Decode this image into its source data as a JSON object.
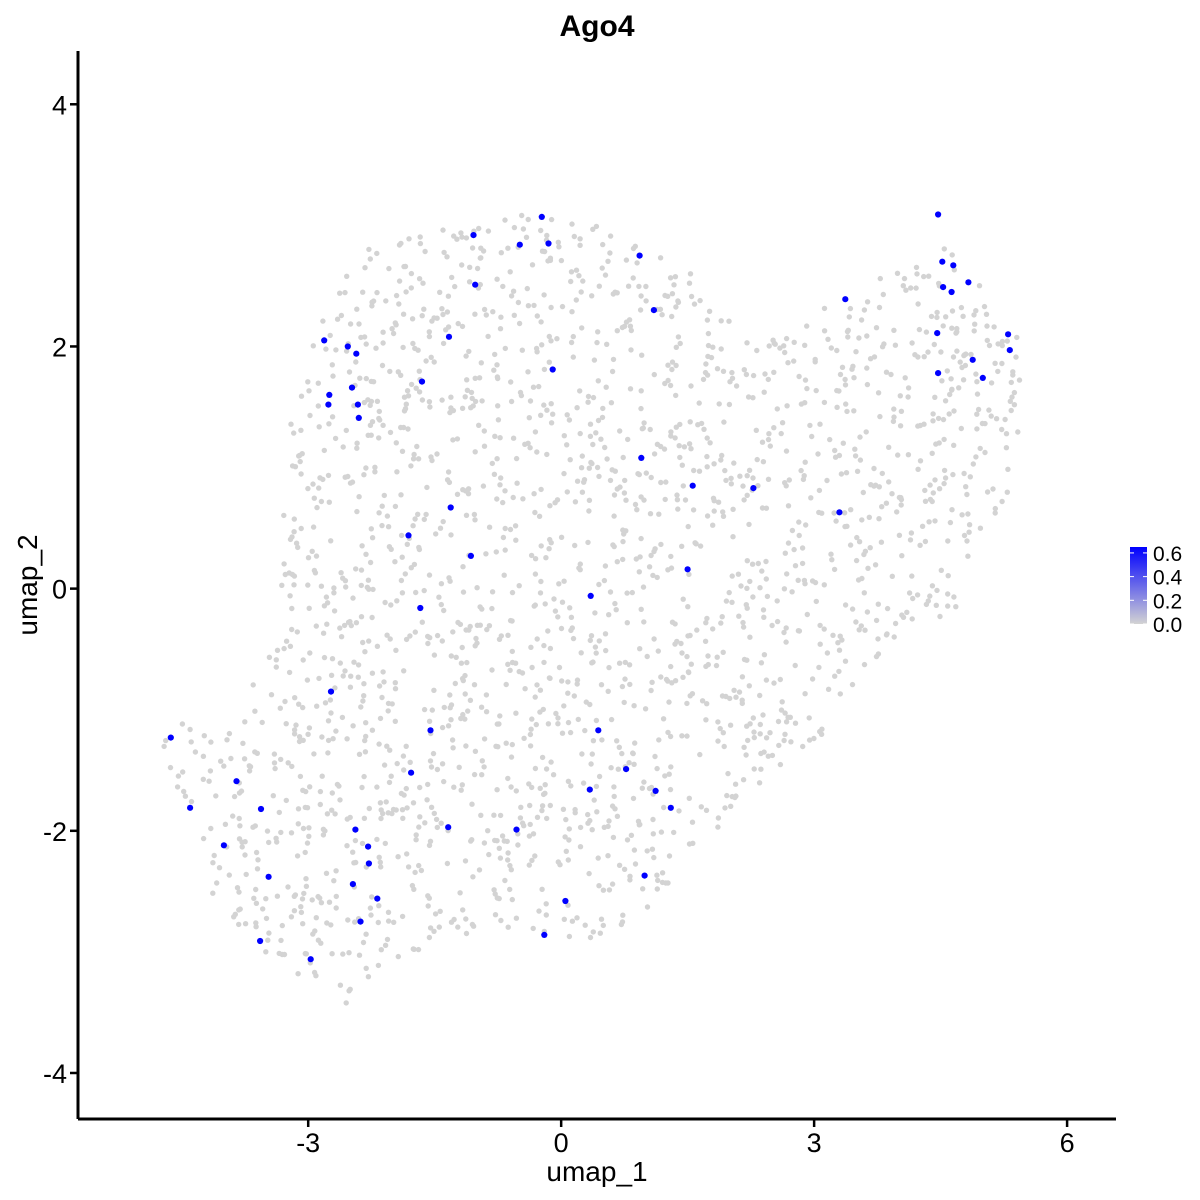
{
  "chart_data": {
    "type": "scatter",
    "title": "Ago4",
    "xlabel": "umap_1",
    "ylabel": "umap_2",
    "xlim": [
      -5.73,
      6.58
    ],
    "ylim": [
      -4.38,
      4.44
    ],
    "x_ticks": [
      -3,
      0,
      3,
      6
    ],
    "y_ticks": [
      -4,
      -2,
      0,
      2,
      4
    ],
    "x_tick_labels": [
      "-3",
      "0",
      "3",
      "6"
    ],
    "y_tick_labels": [
      "-4",
      "-2",
      "0",
      "2",
      "4"
    ],
    "grid": false,
    "legend": {
      "placement": "right",
      "type": "colorbar",
      "range": [
        0.0,
        0.65
      ],
      "ticks": [
        0.0,
        0.2,
        0.4,
        0.6
      ],
      "tick_labels": [
        "0.0",
        "0.2",
        "0.4",
        "0.6"
      ],
      "low_color": "#d3d3d3",
      "high_color": "#0000ff"
    },
    "colors": {
      "unexpressed": "#d3d3d3",
      "expressed": "#0000ff"
    },
    "background_region": {
      "description_points_color": "#d3d3d3",
      "outline": [
        [
          -4.8,
          -1.3
        ],
        [
          -4.5,
          -1.1
        ],
        [
          -3.9,
          -1.2
        ],
        [
          -3.4,
          -0.3
        ],
        [
          -3.3,
          0.7
        ],
        [
          -3.2,
          1.4
        ],
        [
          -2.9,
          2.3
        ],
        [
          -2.3,
          2.8
        ],
        [
          -1.5,
          3.0
        ],
        [
          -0.6,
          3.1
        ],
        [
          0.3,
          3.1
        ],
        [
          1.0,
          2.8
        ],
        [
          1.6,
          2.6
        ],
        [
          2.1,
          2.1
        ],
        [
          2.8,
          2.1
        ],
        [
          3.4,
          2.5
        ],
        [
          4.3,
          2.7
        ],
        [
          4.5,
          3.05
        ],
        [
          4.8,
          2.6
        ],
        [
          5.4,
          2.3
        ],
        [
          5.5,
          1.6
        ],
        [
          5.3,
          0.7
        ],
        [
          5.0,
          0.4
        ],
        [
          4.8,
          -0.1
        ],
        [
          4.1,
          -0.4
        ],
        [
          3.8,
          -0.5
        ],
        [
          3.5,
          -0.9
        ],
        [
          3.0,
          -1.3
        ],
        [
          2.5,
          -1.5
        ],
        [
          2.0,
          -1.9
        ],
        [
          1.6,
          -2.1
        ],
        [
          1.2,
          -2.5
        ],
        [
          0.9,
          -2.8
        ],
        [
          0.5,
          -2.9
        ],
        [
          0.0,
          -2.9
        ],
        [
          -0.6,
          -2.8
        ],
        [
          -1.2,
          -2.9
        ],
        [
          -1.6,
          -3.0
        ],
        [
          -2.0,
          -3.1
        ],
        [
          -2.3,
          -3.3
        ],
        [
          -2.6,
          -3.5
        ],
        [
          -3.0,
          -3.25
        ],
        [
          -3.5,
          -3.05
        ],
        [
          -4.1,
          -2.6
        ],
        [
          -4.4,
          -2.0
        ],
        [
          -4.6,
          -1.6
        ]
      ]
    },
    "series": [
      {
        "name": "",
        "color": "#0000ff",
        "points": [
          [
            -0.23,
            3.07
          ],
          [
            -1.04,
            2.92
          ],
          [
            -0.49,
            2.84
          ],
          [
            -0.15,
            2.85
          ],
          [
            0.93,
            2.75
          ],
          [
            -1.02,
            2.51
          ],
          [
            1.1,
            2.3
          ],
          [
            -2.81,
            2.05
          ],
          [
            -2.53,
            2.0
          ],
          [
            -2.43,
            1.94
          ],
          [
            -1.33,
            2.08
          ],
          [
            -0.1,
            1.81
          ],
          [
            -1.65,
            1.71
          ],
          [
            -2.75,
            1.6
          ],
          [
            -2.48,
            1.66
          ],
          [
            -2.76,
            1.52
          ],
          [
            -2.41,
            1.52
          ],
          [
            -2.4,
            1.41
          ],
          [
            0.95,
            1.08
          ],
          [
            1.56,
            0.85
          ],
          [
            2.28,
            0.83
          ],
          [
            -1.31,
            0.67
          ],
          [
            -1.81,
            0.44
          ],
          [
            -1.07,
            0.27
          ],
          [
            1.5,
            0.16
          ],
          [
            -1.67,
            -0.16
          ],
          [
            0.35,
            -0.06
          ],
          [
            -2.73,
            -0.85
          ],
          [
            -1.55,
            -1.17
          ],
          [
            0.44,
            -1.17
          ],
          [
            -4.63,
            -1.23
          ],
          [
            -1.78,
            -1.52
          ],
          [
            0.77,
            -1.49
          ],
          [
            -3.85,
            -1.59
          ],
          [
            0.34,
            -1.66
          ],
          [
            1.12,
            -1.67
          ],
          [
            -4.4,
            -1.81
          ],
          [
            -3.56,
            -1.82
          ],
          [
            1.3,
            -1.81
          ],
          [
            -2.44,
            -1.99
          ],
          [
            -1.34,
            -1.97
          ],
          [
            -0.53,
            -1.99
          ],
          [
            -4.0,
            -2.12
          ],
          [
            -2.29,
            -2.13
          ],
          [
            -2.28,
            -2.27
          ],
          [
            -3.47,
            -2.38
          ],
          [
            0.99,
            -2.37
          ],
          [
            -2.47,
            -2.44
          ],
          [
            -2.18,
            -2.56
          ],
          [
            0.05,
            -2.58
          ],
          [
            -2.38,
            -2.75
          ],
          [
            -0.2,
            -2.86
          ],
          [
            -3.57,
            -2.91
          ],
          [
            -2.97,
            -3.06
          ],
          [
            3.37,
            2.39
          ],
          [
            4.47,
            3.09
          ],
          [
            4.52,
            2.7
          ],
          [
            4.65,
            2.67
          ],
          [
            4.53,
            2.49
          ],
          [
            4.63,
            2.45
          ],
          [
            4.83,
            2.53
          ],
          [
            4.46,
            2.11
          ],
          [
            5.3,
            2.1
          ],
          [
            5.32,
            1.97
          ],
          [
            4.47,
            1.78
          ],
          [
            4.88,
            1.89
          ],
          [
            5.0,
            1.74
          ],
          [
            3.3,
            0.63
          ]
        ]
      }
    ]
  }
}
